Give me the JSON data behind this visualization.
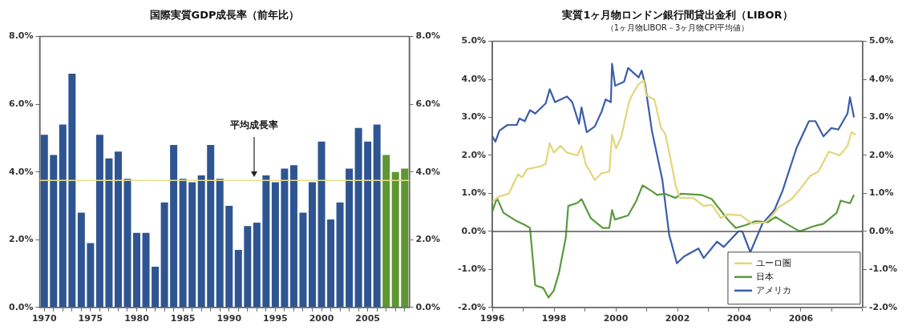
{
  "chart_data": [
    {
      "type": "bar",
      "title": "国際実質GDP成長率（前年比）",
      "categories": [
        "1970",
        null,
        null,
        null,
        null,
        "1975",
        null,
        null,
        null,
        null,
        "1980",
        null,
        null,
        null,
        null,
        "1985",
        null,
        null,
        null,
        null,
        "1990",
        null,
        null,
        null,
        null,
        "1995",
        null,
        null,
        null,
        null,
        "2000",
        null,
        null,
        null,
        null,
        "2005",
        null,
        null,
        null,
        null
      ],
      "values": [
        5.1,
        4.5,
        5.4,
        6.9,
        2.8,
        1.9,
        5.1,
        4.4,
        4.6,
        3.8,
        2.2,
        2.2,
        1.2,
        3.1,
        4.8,
        3.8,
        3.7,
        3.9,
        4.8,
        3.8,
        3.0,
        1.7,
        2.4,
        2.5,
        3.9,
        3.7,
        4.1,
        4.2,
        2.8,
        3.7,
        4.9,
        2.6,
        3.1,
        4.1,
        5.3,
        4.9,
        5.4,
        4.5,
        4.0,
        4.1
      ],
      "colors": [
        "#2e5591",
        "#2e5591",
        "#2e5591",
        "#2e5591",
        "#2e5591",
        "#2e5591",
        "#2e5591",
        "#2e5591",
        "#2e5591",
        "#2e5591",
        "#2e5591",
        "#2e5591",
        "#2e5591",
        "#2e5591",
        "#2e5591",
        "#2e5591",
        "#2e5591",
        "#2e5591",
        "#2e5591",
        "#2e5591",
        "#2e5591",
        "#2e5591",
        "#2e5591",
        "#2e5591",
        "#2e5591",
        "#2e5591",
        "#2e5591",
        "#2e5591",
        "#2e5591",
        "#2e5591",
        "#2e5591",
        "#2e5591",
        "#2e5591",
        "#2e5591",
        "#2e5591",
        "#2e5591",
        "#2e5591",
        "#5e9632",
        "#5e9632",
        "#5e9632"
      ],
      "ylim": [
        0,
        8
      ],
      "yticks": [
        {
          "value": 0,
          "label": "0.0%"
        },
        {
          "value": 2,
          "label": "2.0%"
        },
        {
          "value": 4,
          "label": "4.0%"
        },
        {
          "value": 6,
          "label": "6.0%"
        },
        {
          "value": 8,
          "label": "8.0%"
        }
      ],
      "y2lim": [
        0,
        8
      ],
      "y2ticks": [
        {
          "value": 0,
          "label": "0.0%"
        },
        {
          "value": 2,
          "label": "2.0%"
        },
        {
          "value": 4,
          "label": "4.0%"
        },
        {
          "value": 6,
          "label": "6.0%"
        },
        {
          "value": 8,
          "label": "8.0%"
        }
      ],
      "ref_lines": [
        {
          "axis": "y",
          "value": 3.75,
          "label": "平均成長率",
          "color": "#e8df8c"
        }
      ]
    },
    {
      "type": "line",
      "title": "実質1ヶ月物ロンドン銀行間貸出金利（LIBOR）",
      "subtitle": "（1ヶ月物LIBOR－3ヶ月物CPI平均値）",
      "series": [
        {
          "name": "ユーロ圏",
          "color": "#e3d67a",
          "x": [
            1996.0,
            1996.23,
            1996.53,
            1996.83,
            1996.96,
            1997.13,
            1997.56,
            1997.73,
            1997.86,
            1997.99,
            1998.21,
            1998.42,
            1998.76,
            1998.89,
            1999.02,
            1999.32,
            1999.54,
            1999.79,
            1999.88,
            2000.01,
            2000.18,
            2000.44,
            2000.57,
            2000.74,
            2000.91,
            2000.99,
            2001.25,
            2001.47,
            2001.6,
            2001.77,
            2001.94,
            2002.08,
            2002.51,
            2002.85,
            2003.11,
            2003.41,
            2003.63,
            2004.06,
            2004.41,
            2004.84,
            2005.01,
            2005.27,
            2005.7,
            2005.96,
            2006.3,
            2006.56,
            2006.91,
            2007.25,
            2007.51,
            2007.64,
            2007.77
          ],
          "values": [
            0.78,
            0.92,
            0.99,
            1.5,
            1.42,
            1.64,
            1.71,
            1.78,
            2.32,
            2.07,
            2.25,
            2.07,
            2.0,
            2.25,
            1.78,
            1.35,
            1.53,
            1.57,
            2.54,
            2.18,
            2.5,
            3.44,
            3.65,
            3.87,
            3.97,
            3.58,
            3.47,
            2.72,
            2.57,
            1.93,
            1.2,
            0.88,
            0.88,
            0.67,
            0.7,
            0.35,
            0.45,
            0.42,
            0.2,
            0.24,
            0.35,
            0.63,
            0.85,
            1.1,
            1.46,
            1.57,
            2.1,
            2.0,
            2.25,
            2.61,
            2.54
          ]
        },
        {
          "name": "日本",
          "color": "#5a9a3c",
          "x": [
            1996.0,
            1996.15,
            1996.36,
            1996.79,
            1997.05,
            1997.22,
            1997.39,
            1997.65,
            1997.82,
            1997.99,
            1998.16,
            1998.38,
            1998.46,
            1998.76,
            1998.89,
            1999.19,
            1999.58,
            1999.79,
            1999.88,
            1999.97,
            2000.4,
            2000.65,
            2000.87,
            2001.17,
            2001.34,
            2001.6,
            2001.94,
            2002.11,
            2002.77,
            2003.11,
            2003.63,
            2003.89,
            2004.23,
            2004.53,
            2004.92,
            2005.18,
            2005.53,
            2005.96,
            2006.39,
            2006.73,
            2007.16,
            2007.29,
            2007.59,
            2007.72
          ],
          "values": [
            0.52,
            0.88,
            0.49,
            0.27,
            0.17,
            0.09,
            -1.42,
            -1.49,
            -1.74,
            -1.56,
            -1.09,
            -0.16,
            0.67,
            0.75,
            0.85,
            0.35,
            0.09,
            0.09,
            0.56,
            0.31,
            0.42,
            0.78,
            1.21,
            1.06,
            0.96,
            0.99,
            0.88,
            0.99,
            0.96,
            0.85,
            0.31,
            0.09,
            0.17,
            0.27,
            0.24,
            0.38,
            0.2,
            0,
            0.13,
            0.2,
            0.49,
            0.81,
            0.74,
            0.96
          ]
        },
        {
          "name": "アメリカ",
          "color": "#3a5ea8",
          "x": [
            1996.0,
            1996.1,
            1996.23,
            1996.49,
            1996.79,
            1996.88,
            1997.05,
            1997.22,
            1997.39,
            1997.73,
            1997.86,
            1998.03,
            1998.42,
            1998.59,
            1998.81,
            1998.89,
            1999.06,
            1999.32,
            1999.54,
            1999.67,
            1999.84,
            1999.88,
            1999.98,
            2000.27,
            2000.4,
            2000.74,
            2000.84,
            2000.95,
            2001.17,
            2001.51,
            2001.73,
            2001.98,
            2002.21,
            2002.68,
            2002.85,
            2003.28,
            2003.5,
            2003.97,
            2004.1,
            2004.36,
            2004.75,
            2005.14,
            2005.4,
            2005.86,
            2006.26,
            2006.47,
            2006.73,
            2006.99,
            2007.21,
            2007.51,
            2007.59,
            2007.72
          ],
          "values": [
            2.5,
            2.36,
            2.65,
            2.8,
            2.8,
            2.97,
            2.9,
            3.19,
            3.1,
            3.37,
            3.74,
            3.4,
            3.55,
            3.4,
            2.83,
            3.26,
            2.61,
            2.76,
            3.15,
            3.47,
            3.4,
            4.41,
            3.83,
            3.94,
            4.3,
            4.05,
            4.23,
            3.87,
            2.65,
            1.35,
            -0.09,
            -0.84,
            -0.66,
            -0.45,
            -0.7,
            -0.27,
            -0.41,
            0,
            0,
            -0.55,
            0.2,
            0.56,
            1.06,
            2.2,
            2.9,
            2.9,
            2.5,
            2.72,
            2.68,
            3.1,
            3.53,
            3.0
          ]
        }
      ],
      "xlim": [
        1996,
        2008
      ],
      "xticks": [
        1996,
        {
          "value": 1997,
          "label": null
        },
        1998,
        {
          "value": 1999,
          "label": null
        },
        2000,
        {
          "value": 2001,
          "label": null
        },
        2002,
        {
          "value": 2003,
          "label": null
        },
        2004,
        {
          "value": 2005,
          "label": null
        },
        2006,
        {
          "value": 2007,
          "label": null
        },
        {
          "value": 2008,
          "label": null
        }
      ],
      "ylim": [
        -2,
        5
      ],
      "yticks": [
        {
          "value": -2,
          "label": "-2.0%"
        },
        {
          "value": -1,
          "label": "-1.0%"
        },
        {
          "value": 0,
          "label": "0.0%"
        },
        {
          "value": 1,
          "label": "1.0%"
        },
        {
          "value": 2,
          "label": "2.0%"
        },
        {
          "value": 3,
          "label": "3.0%"
        },
        {
          "value": 4,
          "label": "4.0%"
        },
        {
          "value": 5,
          "label": "5.0%"
        }
      ],
      "y2lim": [
        -2,
        5
      ],
      "y2ticks": [
        {
          "value": -2,
          "label": "-2.0%"
        },
        {
          "value": -1,
          "label": "-1.0%"
        },
        {
          "value": 0,
          "label": "0.0%"
        },
        {
          "value": 1,
          "label": "1.0%"
        },
        {
          "value": 2,
          "label": "2.0%"
        },
        {
          "value": 3,
          "label": "3.0%"
        },
        {
          "value": 4,
          "label": "4.0%"
        },
        {
          "value": 5,
          "label": "5.0%"
        }
      ],
      "ref_lines": [
        {
          "axis": "y",
          "value": 0,
          "color": "#555555"
        }
      ],
      "legend": "bottom right"
    }
  ]
}
